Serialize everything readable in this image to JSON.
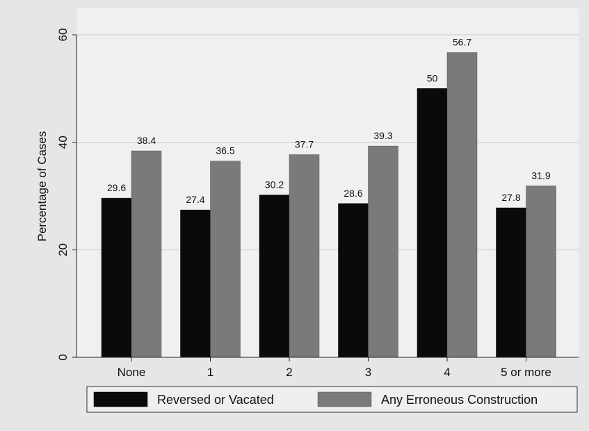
{
  "chart_data": {
    "type": "bar",
    "categories": [
      "None",
      "1",
      "2",
      "3",
      "4",
      "5 or more"
    ],
    "series": [
      {
        "name": "Reversed or Vacated",
        "values": [
          29.6,
          27.4,
          30.2,
          28.6,
          50,
          27.8
        ],
        "color": "#0a0a0a"
      },
      {
        "name": "Any Erroneous Construction",
        "values": [
          38.4,
          36.5,
          37.7,
          39.3,
          56.7,
          31.9
        ],
        "color": "#7a7a7a"
      }
    ],
    "data_labels": [
      [
        "29.6",
        "27.4",
        "30.2",
        "28.6",
        "50",
        "27.8"
      ],
      [
        "38.4",
        "36.5",
        "37.7",
        "39.3",
        "56.7",
        "31.9"
      ]
    ],
    "title": "",
    "xlabel": "",
    "ylabel": "Percentage of Cases",
    "ylim": [
      0,
      60
    ],
    "yticks": [
      0,
      20,
      40,
      60
    ],
    "ytick_labels": [
      "0",
      "20",
      "40",
      "60"
    ],
    "grid": true,
    "legend_position": "bottom",
    "plot_background": "#f0f0f0",
    "page_background": "#e6e6e6"
  }
}
